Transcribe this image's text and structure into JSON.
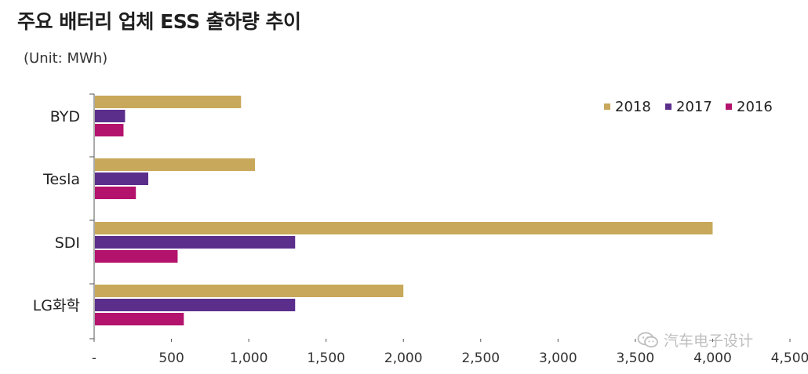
{
  "chart_data": {
    "type": "bar",
    "orientation": "horizontal",
    "title": "주요 배터리 업체 ESS 출하량 추이",
    "subtitle": "(Unit: MWh)",
    "categories": [
      "BYD",
      "Tesla",
      "SDI",
      "LG화학"
    ],
    "series": [
      {
        "name": "2018",
        "values": [
          950,
          1040,
          4000,
          2000
        ],
        "color": "#C8A85A"
      },
      {
        "name": "2017",
        "values": [
          200,
          350,
          1300,
          1300
        ],
        "color": "#5B2E8C"
      },
      {
        "name": "2016",
        "values": [
          190,
          270,
          540,
          580
        ],
        "color": "#B3126D"
      }
    ],
    "x_ticks": [
      "-",
      "500",
      "1,000",
      "1,500",
      "2,000",
      "2,500",
      "3,000",
      "3,500",
      "4,000",
      "4,500"
    ],
    "xlim": [
      0,
      4500
    ],
    "grid": false,
    "legend_position": "top-right"
  },
  "watermark": {
    "text": "汽车电子设计",
    "icon": "wechat-icon"
  }
}
